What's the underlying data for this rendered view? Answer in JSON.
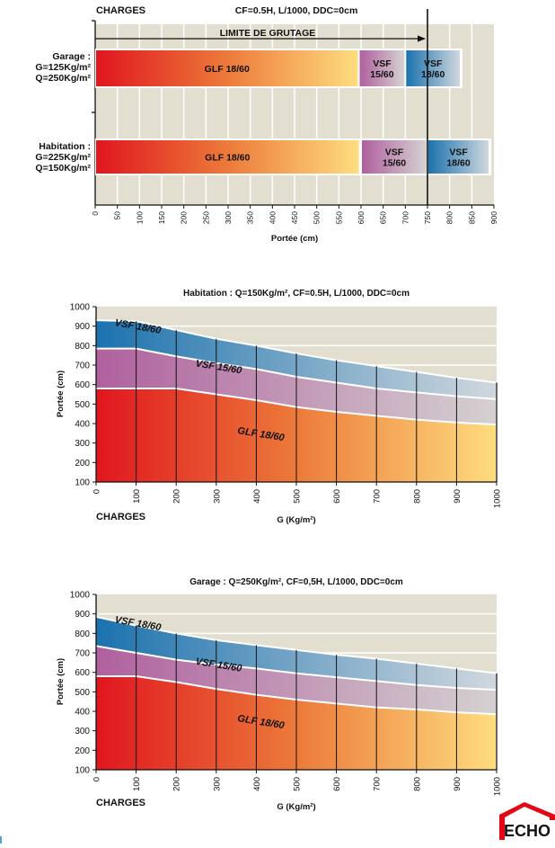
{
  "colors": {
    "plot_bg": "#e3dfd0",
    "grid": "#ffffff",
    "glf_start": "#e0161f",
    "glf_mid": "#ec7a3a",
    "glf_end": "#fedd7f",
    "vsf15_start": "#b0609e",
    "vsf15_end": "#d4d1d0",
    "vsf18_start": "#1b72ae",
    "vsf18_end": "#d0d8de",
    "logo_red": "#e30613"
  },
  "logo": {
    "text": "ECHO"
  },
  "chart_data": [
    {
      "id": "bar-chart",
      "type": "bar",
      "orientation": "horizontal-stacked-ranges",
      "header_left": "CHARGES",
      "title": "CF=0.5H, L/1000, DDC=0cm",
      "xlabel": "Portée (cm)",
      "xlim": [
        0,
        900
      ],
      "xticks": [
        0,
        50,
        100,
        150,
        200,
        250,
        300,
        350,
        400,
        450,
        500,
        550,
        600,
        650,
        700,
        750,
        800,
        850,
        900
      ],
      "grid": true,
      "limit": {
        "label": "LIMITE DE GRUTAGE",
        "value": 750
      },
      "categories": [
        {
          "label_lines": [
            "Garage :",
            "G=125Kg/m²",
            "Q=250Kg/m²"
          ],
          "segments": [
            {
              "name": "GLF 18/60",
              "label_lines": [
                "GLF 18/60"
              ],
              "from": 0,
              "to": 595
            },
            {
              "name": "VSF 15/60",
              "label_lines": [
                "VSF",
                "15/60"
              ],
              "from": 595,
              "to": 700
            },
            {
              "name": "VSF 18/60",
              "label_lines": [
                "VSF",
                "18/60"
              ],
              "from": 700,
              "to": 825
            }
          ]
        },
        {
          "label_lines": [
            "Habitation :",
            "G=225Kg/m²",
            "Q=150Kg/m²"
          ],
          "segments": [
            {
              "name": "GLF 18/60",
              "label_lines": [
                "GLF 18/60"
              ],
              "from": 0,
              "to": 597
            },
            {
              "name": "VSF 15/60",
              "label_lines": [
                "VSF",
                "15/60"
              ],
              "from": 600,
              "to": 750
            },
            {
              "name": "VSF 18/60",
              "label_lines": [
                "VSF",
                "18/60"
              ],
              "from": 750,
              "to": 890
            }
          ]
        }
      ]
    },
    {
      "id": "habitation-chart",
      "type": "area",
      "title": "Habitation : Q=150Kg/m², CF=0.5H, L/1000, DDC=0cm",
      "xlabel": "G (Kg/m²)",
      "ylabel": "Portée (cm)",
      "footer_left": "CHARGES",
      "xlim": [
        0,
        1000
      ],
      "ylim": [
        100,
        1000
      ],
      "xticks": [
        0,
        100,
        200,
        300,
        400,
        500,
        600,
        700,
        800,
        900,
        1000
      ],
      "yticks": [
        100,
        200,
        300,
        400,
        500,
        600,
        700,
        800,
        900,
        1000
      ],
      "grid": true,
      "x": [
        0,
        100,
        200,
        300,
        400,
        500,
        600,
        700,
        800,
        900,
        1000
      ],
      "series": [
        {
          "name": "VSF 18/60",
          "values": [
            930,
            925,
            880,
            835,
            800,
            760,
            725,
            695,
            665,
            635,
            610
          ]
        },
        {
          "name": "VSF 15/60",
          "values": [
            785,
            785,
            745,
            710,
            680,
            640,
            610,
            580,
            560,
            540,
            525
          ]
        },
        {
          "name": "GLF 18/60",
          "values": [
            580,
            580,
            580,
            550,
            520,
            485,
            460,
            440,
            420,
            405,
            395
          ]
        }
      ]
    },
    {
      "id": "garage-chart",
      "type": "area",
      "title": "Garage : Q=250Kg/m², CF=0,5H, L/1000, DDC=0cm",
      "xlabel": "G (Kg/m²)",
      "ylabel": "Portée (cm)",
      "footer_left": "CHARGES",
      "xlim": [
        0,
        1000
      ],
      "ylim": [
        100,
        1000
      ],
      "xticks": [
        0,
        100,
        200,
        300,
        400,
        500,
        600,
        700,
        800,
        900,
        1000
      ],
      "yticks": [
        100,
        200,
        300,
        400,
        500,
        600,
        700,
        800,
        900,
        1000
      ],
      "grid": true,
      "x": [
        0,
        100,
        200,
        300,
        400,
        500,
        600,
        700,
        800,
        900,
        1000
      ],
      "series": [
        {
          "name": "VSF 18/60",
          "values": [
            885,
            840,
            800,
            765,
            740,
            715,
            690,
            670,
            645,
            620,
            595
          ]
        },
        {
          "name": "VSF 15/60",
          "values": [
            735,
            700,
            665,
            640,
            620,
            595,
            575,
            555,
            535,
            520,
            510
          ]
        },
        {
          "name": "GLF 18/60",
          "values": [
            580,
            580,
            550,
            515,
            485,
            460,
            440,
            420,
            410,
            395,
            385
          ]
        }
      ]
    }
  ]
}
